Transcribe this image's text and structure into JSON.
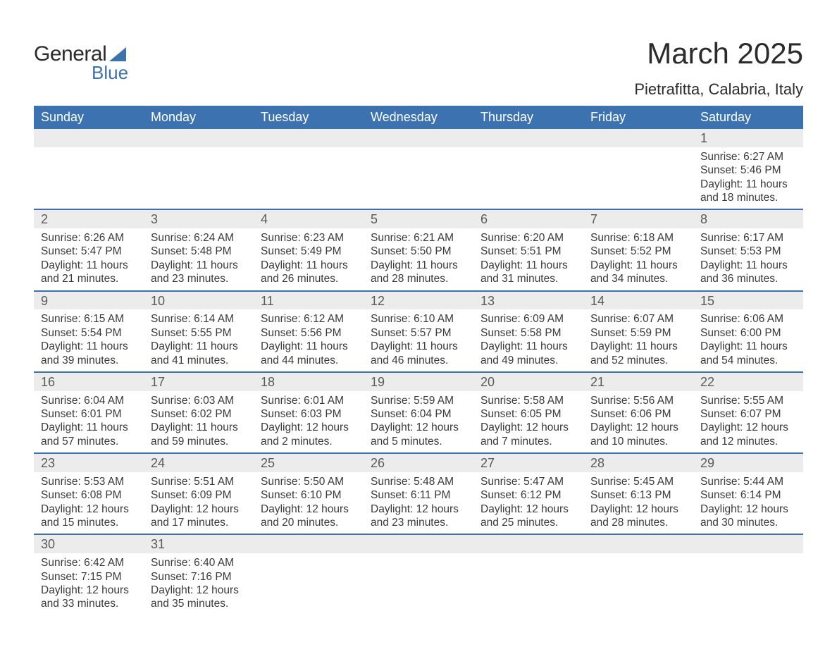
{
  "brand": {
    "text_general": "General",
    "text_blue": "Blue",
    "logo_color": "#3c72b0"
  },
  "title": {
    "month": "March 2025",
    "location": "Pietrafitta, Calabria, Italy"
  },
  "colors": {
    "header_bg": "#3c72b0",
    "header_text": "#ffffff",
    "daynum_bg": "#ececec",
    "daynum_text": "#5a5a5a",
    "body_text": "#3a3a3a",
    "row_border": "#3c72b0",
    "page_bg": "#ffffff"
  },
  "fonts": {
    "title_month_pt": 42,
    "title_location_pt": 22,
    "dayhead_pt": 18,
    "daynum_pt": 18,
    "body_pt": 15.5
  },
  "dayheads": [
    "Sunday",
    "Monday",
    "Tuesday",
    "Wednesday",
    "Thursday",
    "Friday",
    "Saturday"
  ],
  "weeks": [
    [
      {
        "day": "",
        "sunrise": "",
        "sunset": "",
        "daylight": ""
      },
      {
        "day": "",
        "sunrise": "",
        "sunset": "",
        "daylight": ""
      },
      {
        "day": "",
        "sunrise": "",
        "sunset": "",
        "daylight": ""
      },
      {
        "day": "",
        "sunrise": "",
        "sunset": "",
        "daylight": ""
      },
      {
        "day": "",
        "sunrise": "",
        "sunset": "",
        "daylight": ""
      },
      {
        "day": "",
        "sunrise": "",
        "sunset": "",
        "daylight": ""
      },
      {
        "day": "1",
        "sunrise": "Sunrise: 6:27 AM",
        "sunset": "Sunset: 5:46 PM",
        "daylight": "Daylight: 11 hours and 18 minutes."
      }
    ],
    [
      {
        "day": "2",
        "sunrise": "Sunrise: 6:26 AM",
        "sunset": "Sunset: 5:47 PM",
        "daylight": "Daylight: 11 hours and 21 minutes."
      },
      {
        "day": "3",
        "sunrise": "Sunrise: 6:24 AM",
        "sunset": "Sunset: 5:48 PM",
        "daylight": "Daylight: 11 hours and 23 minutes."
      },
      {
        "day": "4",
        "sunrise": "Sunrise: 6:23 AM",
        "sunset": "Sunset: 5:49 PM",
        "daylight": "Daylight: 11 hours and 26 minutes."
      },
      {
        "day": "5",
        "sunrise": "Sunrise: 6:21 AM",
        "sunset": "Sunset: 5:50 PM",
        "daylight": "Daylight: 11 hours and 28 minutes."
      },
      {
        "day": "6",
        "sunrise": "Sunrise: 6:20 AM",
        "sunset": "Sunset: 5:51 PM",
        "daylight": "Daylight: 11 hours and 31 minutes."
      },
      {
        "day": "7",
        "sunrise": "Sunrise: 6:18 AM",
        "sunset": "Sunset: 5:52 PM",
        "daylight": "Daylight: 11 hours and 34 minutes."
      },
      {
        "day": "8",
        "sunrise": "Sunrise: 6:17 AM",
        "sunset": "Sunset: 5:53 PM",
        "daylight": "Daylight: 11 hours and 36 minutes."
      }
    ],
    [
      {
        "day": "9",
        "sunrise": "Sunrise: 6:15 AM",
        "sunset": "Sunset: 5:54 PM",
        "daylight": "Daylight: 11 hours and 39 minutes."
      },
      {
        "day": "10",
        "sunrise": "Sunrise: 6:14 AM",
        "sunset": "Sunset: 5:55 PM",
        "daylight": "Daylight: 11 hours and 41 minutes."
      },
      {
        "day": "11",
        "sunrise": "Sunrise: 6:12 AM",
        "sunset": "Sunset: 5:56 PM",
        "daylight": "Daylight: 11 hours and 44 minutes."
      },
      {
        "day": "12",
        "sunrise": "Sunrise: 6:10 AM",
        "sunset": "Sunset: 5:57 PM",
        "daylight": "Daylight: 11 hours and 46 minutes."
      },
      {
        "day": "13",
        "sunrise": "Sunrise: 6:09 AM",
        "sunset": "Sunset: 5:58 PM",
        "daylight": "Daylight: 11 hours and 49 minutes."
      },
      {
        "day": "14",
        "sunrise": "Sunrise: 6:07 AM",
        "sunset": "Sunset: 5:59 PM",
        "daylight": "Daylight: 11 hours and 52 minutes."
      },
      {
        "day": "15",
        "sunrise": "Sunrise: 6:06 AM",
        "sunset": "Sunset: 6:00 PM",
        "daylight": "Daylight: 11 hours and 54 minutes."
      }
    ],
    [
      {
        "day": "16",
        "sunrise": "Sunrise: 6:04 AM",
        "sunset": "Sunset: 6:01 PM",
        "daylight": "Daylight: 11 hours and 57 minutes."
      },
      {
        "day": "17",
        "sunrise": "Sunrise: 6:03 AM",
        "sunset": "Sunset: 6:02 PM",
        "daylight": "Daylight: 11 hours and 59 minutes."
      },
      {
        "day": "18",
        "sunrise": "Sunrise: 6:01 AM",
        "sunset": "Sunset: 6:03 PM",
        "daylight": "Daylight: 12 hours and 2 minutes."
      },
      {
        "day": "19",
        "sunrise": "Sunrise: 5:59 AM",
        "sunset": "Sunset: 6:04 PM",
        "daylight": "Daylight: 12 hours and 5 minutes."
      },
      {
        "day": "20",
        "sunrise": "Sunrise: 5:58 AM",
        "sunset": "Sunset: 6:05 PM",
        "daylight": "Daylight: 12 hours and 7 minutes."
      },
      {
        "day": "21",
        "sunrise": "Sunrise: 5:56 AM",
        "sunset": "Sunset: 6:06 PM",
        "daylight": "Daylight: 12 hours and 10 minutes."
      },
      {
        "day": "22",
        "sunrise": "Sunrise: 5:55 AM",
        "sunset": "Sunset: 6:07 PM",
        "daylight": "Daylight: 12 hours and 12 minutes."
      }
    ],
    [
      {
        "day": "23",
        "sunrise": "Sunrise: 5:53 AM",
        "sunset": "Sunset: 6:08 PM",
        "daylight": "Daylight: 12 hours and 15 minutes."
      },
      {
        "day": "24",
        "sunrise": "Sunrise: 5:51 AM",
        "sunset": "Sunset: 6:09 PM",
        "daylight": "Daylight: 12 hours and 17 minutes."
      },
      {
        "day": "25",
        "sunrise": "Sunrise: 5:50 AM",
        "sunset": "Sunset: 6:10 PM",
        "daylight": "Daylight: 12 hours and 20 minutes."
      },
      {
        "day": "26",
        "sunrise": "Sunrise: 5:48 AM",
        "sunset": "Sunset: 6:11 PM",
        "daylight": "Daylight: 12 hours and 23 minutes."
      },
      {
        "day": "27",
        "sunrise": "Sunrise: 5:47 AM",
        "sunset": "Sunset: 6:12 PM",
        "daylight": "Daylight: 12 hours and 25 minutes."
      },
      {
        "day": "28",
        "sunrise": "Sunrise: 5:45 AM",
        "sunset": "Sunset: 6:13 PM",
        "daylight": "Daylight: 12 hours and 28 minutes."
      },
      {
        "day": "29",
        "sunrise": "Sunrise: 5:44 AM",
        "sunset": "Sunset: 6:14 PM",
        "daylight": "Daylight: 12 hours and 30 minutes."
      }
    ],
    [
      {
        "day": "30",
        "sunrise": "Sunrise: 6:42 AM",
        "sunset": "Sunset: 7:15 PM",
        "daylight": "Daylight: 12 hours and 33 minutes."
      },
      {
        "day": "31",
        "sunrise": "Sunrise: 6:40 AM",
        "sunset": "Sunset: 7:16 PM",
        "daylight": "Daylight: 12 hours and 35 minutes."
      },
      {
        "day": "",
        "sunrise": "",
        "sunset": "",
        "daylight": ""
      },
      {
        "day": "",
        "sunrise": "",
        "sunset": "",
        "daylight": ""
      },
      {
        "day": "",
        "sunrise": "",
        "sunset": "",
        "daylight": ""
      },
      {
        "day": "",
        "sunrise": "",
        "sunset": "",
        "daylight": ""
      },
      {
        "day": "",
        "sunrise": "",
        "sunset": "",
        "daylight": ""
      }
    ]
  ]
}
